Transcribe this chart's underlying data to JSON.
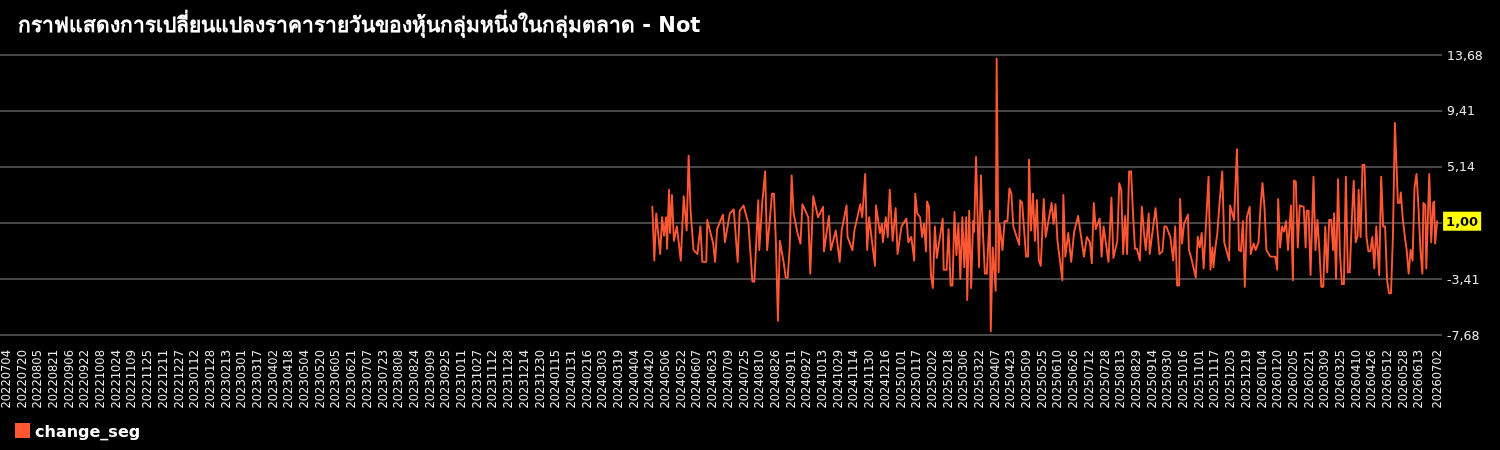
{
  "chart_data": {
    "type": "line",
    "title": "กราฟแสดงการเปลี่ยนแปลงราคารายวันของหุ้นกลุ่มหนึ่งในกลุ่มตลาด - Not",
    "x": [
      "2024-04-23",
      "2024-04-25",
      "2024-04-27",
      "2024-05-01",
      "2024-05-03",
      "2024-05-05",
      "2024-05-07",
      "2024-05-08",
      "2024-05-10",
      "2024-05-11",
      "2024-05-13",
      "2024-05-15",
      "2024-05-18",
      "2024-05-22",
      "2024-05-25",
      "2024-05-28",
      "2024-05-30",
      "2024-06-01",
      "2024-06-04",
      "2024-06-08",
      "2024-06-11",
      "2024-06-13",
      "2024-06-17",
      "2024-06-18",
      "2024-06-24",
      "2024-06-26",
      "2024-06-28",
      "2024-07-04",
      "2024-07-06",
      "2024-07-11",
      "2024-07-15",
      "2024-07-19",
      "2024-07-21",
      "2024-07-25",
      "2024-07-30",
      "2024-08-03",
      "2024-08-05",
      "2024-08-09",
      "2024-08-10",
      "2024-08-13",
      "2024-08-16",
      "2024-08-18",
      "2024-08-21",
      "2024-08-23",
      "2024-08-25",
      "2024-08-27",
      "2024-08-29",
      "2024-08-31",
      "2024-09-04",
      "2024-09-06",
      "2024-09-08",
      "2024-09-10",
      "2024-09-12",
      "2024-09-14",
      "2024-09-18",
      "2024-09-21",
      "2024-09-23",
      "2024-09-29",
      "2024-10-01",
      "2024-10-04",
      "2024-10-09",
      "2024-10-14",
      "2024-10-15",
      "2024-10-20",
      "2024-10-22",
      "2024-10-27",
      "2024-10-31",
      "2024-11-02",
      "2024-11-07",
      "2024-11-08",
      "2024-11-13",
      "2024-11-15",
      "2024-11-21",
      "2024-11-23",
      "2024-11-26",
      "2024-11-28",
      "2024-11-30",
      "2024-12-03",
      "2024-12-06",
      "2024-12-07",
      "2024-12-11",
      "2024-12-13",
      "2024-12-14",
      "2024-12-17",
      "2024-12-19",
      "2024-12-21",
      "2024-12-24",
      "2024-12-27",
      "2024-12-29",
      "2025-01-02",
      "2025-01-07",
      "2025-01-09",
      "2025-01-12",
      "2025-01-15",
      "2025-01-16",
      "2025-01-18",
      "2025-01-21",
      "2025-01-23",
      "2025-01-25",
      "2025-01-27",
      "2025-01-28",
      "2025-01-30",
      "2025-02-01",
      "2025-02-03",
      "2025-02-05",
      "2025-02-07",
      "2025-02-13",
      "2025-02-14",
      "2025-02-17",
      "2025-02-19",
      "2025-02-21",
      "2025-02-23",
      "2025-02-25",
      "2025-02-27",
      "2025-03-01",
      "2025-03-03",
      "2025-03-05",
      "2025-03-07",
      "2025-03-09",
      "2025-03-10",
      "2025-03-12",
      "2025-03-14",
      "2025-03-16",
      "2025-03-17",
      "2025-03-19",
      "2025-03-21",
      "2025-03-22",
      "2025-03-24",
      "2025-03-26",
      "2025-03-28",
      "2025-03-30",
      "2025-04-02",
      "2025-04-03",
      "2025-04-05",
      "2025-04-08",
      "2025-04-09",
      "2025-04-11",
      "2025-04-12",
      "2025-04-15",
      "2025-04-17",
      "2025-04-20",
      "2025-04-22",
      "2025-04-24",
      "2025-04-26",
      "2025-05-02",
      "2025-05-03",
      "2025-05-05",
      "2025-05-09",
      "2025-05-11",
      "2025-05-12",
      "2025-05-14",
      "2025-05-16",
      "2025-05-18",
      "2025-05-20",
      "2025-05-22",
      "2025-05-24",
      "2025-05-27",
      "2025-05-29",
      "2025-06-04",
      "2025-06-06",
      "2025-06-08",
      "2025-06-10",
      "2025-06-15",
      "2025-06-16",
      "2025-06-18",
      "2025-06-21",
      "2025-06-24",
      "2025-06-27",
      "2025-07-01",
      "2025-07-07",
      "2025-07-10",
      "2025-07-13",
      "2025-07-15",
      "2025-07-17",
      "2025-07-19",
      "2025-07-23",
      "2025-07-25",
      "2025-07-27",
      "2025-08-01",
      "2025-08-04",
      "2025-08-06",
      "2025-08-10",
      "2025-08-12",
      "2025-08-14",
      "2025-08-16",
      "2025-08-18",
      "2025-08-20",
      "2025-08-22",
      "2025-08-24",
      "2025-08-26",
      "2025-08-28",
      "2025-08-30",
      "2025-09-02",
      "2025-09-04",
      "2025-09-06",
      "2025-09-08",
      "2025-09-11",
      "2025-09-12",
      "2025-09-18",
      "2025-09-22",
      "2025-09-25",
      "2025-09-27",
      "2025-09-29",
      "2025-10-03",
      "2025-10-06",
      "2025-10-08",
      "2025-10-10",
      "2025-10-12",
      "2025-10-13",
      "2025-10-15",
      "2025-10-17",
      "2025-10-21",
      "2025-10-22",
      "2025-10-24",
      "2025-10-29",
      "2025-10-31",
      "2025-11-02",
      "2025-11-04",
      "2025-11-06",
      "2025-11-08",
      "2025-11-11",
      "2025-11-13",
      "2025-11-15",
      "2025-11-16",
      "2025-11-18",
      "2025-11-20",
      "2025-11-22",
      "2025-11-25",
      "2025-11-27",
      "2025-12-02",
      "2025-12-03",
      "2025-12-07",
      "2025-12-10",
      "2025-12-12",
      "2025-12-14",
      "2025-12-16",
      "2025-12-18",
      "2025-12-20",
      "2025-12-23",
      "2025-12-24",
      "2025-12-27",
      "2025-12-29",
      "2026-01-01",
      "2026-01-03",
      "2026-01-05",
      "2026-01-07",
      "2026-01-09",
      "2026-01-13",
      "2026-01-18",
      "2026-01-20",
      "2026-01-21",
      "2026-01-23",
      "2026-01-25",
      "2026-01-27",
      "2026-01-29",
      "2026-01-31",
      "2026-02-03",
      "2026-02-05",
      "2026-02-06",
      "2026-02-08",
      "2026-02-10",
      "2026-02-12",
      "2026-02-16",
      "2026-02-18",
      "2026-02-19",
      "2026-02-21",
      "2026-02-23",
      "2026-02-26",
      "2026-02-28",
      "2026-03-02",
      "2026-03-04",
      "2026-03-06",
      "2026-03-08",
      "2026-03-10",
      "2026-03-12",
      "2026-03-14",
      "2026-03-16",
      "2026-03-18",
      "2026-03-19",
      "2026-03-21",
      "2026-03-23",
      "2026-03-25",
      "2026-03-27",
      "2026-03-29",
      "2026-03-31",
      "2026-04-02",
      "2026-04-04",
      "2026-04-06",
      "2026-04-08",
      "2026-04-10",
      "2026-04-12",
      "2026-04-13",
      "2026-04-15",
      "2026-04-17",
      "2026-04-19",
      "2026-04-21",
      "2026-04-23",
      "2026-04-25",
      "2026-04-27",
      "2026-04-29",
      "2026-05-01",
      "2026-05-04",
      "2026-05-06",
      "2026-05-08",
      "2026-05-10",
      "2026-05-12",
      "2026-05-14",
      "2026-05-16",
      "2026-05-18",
      "2026-05-20",
      "2026-05-23",
      "2026-05-25",
      "2026-05-26",
      "2026-05-28",
      "2026-05-30",
      "2026-06-01",
      "2026-06-03",
      "2026-06-05",
      "2026-06-07",
      "2026-06-09",
      "2026-06-11",
      "2026-06-13",
      "2026-06-15",
      "2026-06-17",
      "2026-06-18",
      "2026-06-20",
      "2026-06-21",
      "2026-06-24",
      "2026-06-26",
      "2026-06-28",
      "2026-06-29",
      "2026-06-30",
      "2026-07-02"
    ],
    "series": [
      {
        "name": "change_seg",
        "color": "#ff5733",
        "values": [
          2.1,
          -2.0,
          1.6,
          -1.5,
          1.3,
          -0.1,
          1.3,
          -1.1,
          3.4,
          0.1,
          3.0,
          -0.5,
          0.6,
          -2.0,
          2.9,
          0.3,
          6.0,
          1.8,
          -1.2,
          -1.5,
          0.6,
          -2.1,
          -2.1,
          1.1,
          -0.7,
          -2.1,
          0.4,
          1.5,
          -0.6,
          1.6,
          1.9,
          -2.1,
          1.8,
          2.2,
          0.8,
          -3.6,
          -3.6,
          2.6,
          -1.2,
          2.4,
          4.8,
          -1.2,
          1.3,
          3.1,
          3.1,
          -0.7,
          -6.6,
          -0.5,
          -2.2,
          -3.3,
          -3.3,
          -1.0,
          4.5,
          1.6,
          0.1,
          -0.7,
          2.3,
          1.3,
          -3.0,
          2.9,
          1.3,
          2.1,
          -1.3,
          1.4,
          -1.2,
          0.3,
          -2.1,
          0.3,
          2.2,
          -0.2,
          -1.2,
          0.3,
          2.3,
          1.3,
          4.6,
          -1.2,
          1.3,
          -0.6,
          -2.4,
          2.2,
          0.1,
          0.8,
          -0.6,
          1.3,
          -0.2,
          3.4,
          -0.5,
          2.0,
          -1.5,
          0.6,
          1.2,
          -0.6,
          -0.2,
          -2.0,
          3.1,
          1.6,
          1.3,
          -0.2,
          0.8,
          -1.3,
          2.5,
          2.1,
          -3.1,
          -4.1,
          0.6,
          -1.8,
          1.2,
          -2.7,
          -2.7,
          0.4,
          -3.9,
          -3.9,
          1.7,
          -1.6,
          0.8,
          -3.4,
          1.3,
          -2.5,
          1.3,
          -5.0,
          1.8,
          -4.1,
          1.0,
          0.2,
          5.9,
          0.1,
          -2.5,
          4.5,
          0.2,
          -3.0,
          -3.0,
          1.8,
          -7.4,
          -1.0,
          -4.3,
          13.4,
          -2.9,
          0.8,
          -1.2,
          1.0,
          1.0,
          3.5,
          3.1,
          0.6,
          -0.8,
          2.6,
          2.4,
          -1.7,
          -1.7,
          5.7,
          0.3,
          3.1,
          -0.5,
          2.6,
          -2.0,
          -2.4,
          2.7,
          -0.2,
          2.4,
          0.8,
          2.3,
          -0.5,
          -3.5,
          3.0,
          -1.7,
          0.1,
          -2.1,
          0.2,
          1.4,
          -1.7,
          -0.2,
          -0.6,
          -2.2,
          2.4,
          0.4,
          1.2,
          -1.7,
          0.6,
          -2.1,
          2.8,
          -1.8,
          -0.5,
          3.9,
          3.4,
          -1.5,
          1.4,
          -1.5,
          4.8,
          4.8,
          1.6,
          -1.1,
          -1.1,
          -2.0,
          2.1,
          0.3,
          -1.2,
          1.6,
          -1.5,
          2.0,
          -1.5,
          -1.3,
          0.6,
          0.6,
          -0.2,
          -2.0,
          0.6,
          -3.9,
          -3.9,
          2.7,
          -0.7,
          0.8,
          1.5,
          -1.2,
          -1.7,
          -3.3,
          -0.2,
          -1.0,
          0.1,
          -2.6,
          0.2,
          4.4,
          -2.7,
          -1.0,
          -2.5,
          -1.0,
          0.1,
          2.2,
          4.8,
          -0.6,
          -2.0,
          2.2,
          1.1,
          6.5,
          -1.2,
          -1.3,
          1.0,
          -4.0,
          1.3,
          2.1,
          -1.5,
          -0.7,
          -1.2,
          -0.6,
          2.1,
          3.9,
          2.1,
          -1.2,
          -1.7,
          -1.7,
          -2.7,
          2.7,
          -1.0,
          0.6,
          0.2,
          1.0,
          -1.2,
          2.2,
          -3.5,
          4.1,
          4.0,
          -1.0,
          2.2,
          2.1,
          -1.0,
          1.8,
          1.8,
          -3.1,
          4.4,
          -1.2,
          1.1,
          -1.2,
          -4.0,
          -4.0,
          0.6,
          -2.9,
          1.1,
          1.1,
          -1.2,
          1.6,
          -3.4,
          4.2,
          -1.5,
          -3.8,
          -3.8,
          4.4,
          -2.9,
          -2.9,
          1.0,
          4.1,
          -0.6,
          -0.1,
          3.4,
          -0.2,
          5.3,
          5.3,
          -0.2,
          -1.3,
          -1.3,
          -0.2,
          -2.6,
          0.6,
          -3.1,
          4.4,
          0.6,
          0.6,
          -3.5,
          -4.5,
          -4.5,
          -0.1,
          8.5,
          2.4,
          2.4,
          3.2,
          1.2,
          -0.1,
          -1.2,
          -3.0,
          -1.2,
          -2.0,
          3.6,
          4.6,
          2.1,
          -1.2,
          -3.0,
          2.4,
          2.2,
          -2.6,
          4.6,
          -0.6,
          2.4,
          2.5,
          -0.7,
          1.0
        ]
      }
    ],
    "xlim": [
      "2022-06-28",
      "2026-07-07"
    ],
    "xticks": [
      {
        "value": "2022-07-04",
        "label": "20220704"
      },
      {
        "value": "2022-07-20",
        "label": "20220720"
      },
      {
        "value": "2022-08-05",
        "label": "20220805"
      },
      {
        "value": "2022-08-21",
        "label": "20220821"
      },
      {
        "value": "2022-09-06",
        "label": "20220906"
      },
      {
        "value": "2022-09-22",
        "label": "20220922"
      },
      {
        "value": "2022-10-08",
        "label": "20221008"
      },
      {
        "value": "2022-10-24",
        "label": "20221024"
      },
      {
        "value": "2022-11-09",
        "label": "20221109"
      },
      {
        "value": "2022-11-25",
        "label": "20221125"
      },
      {
        "value": "2022-12-11",
        "label": "20221211"
      },
      {
        "value": "2022-12-27",
        "label": "20221227"
      },
      {
        "value": "2023-01-12",
        "label": "20230112"
      },
      {
        "value": "2023-01-28",
        "label": "20230128"
      },
      {
        "value": "2023-02-13",
        "label": "20230213"
      },
      {
        "value": "2023-03-01",
        "label": "20230301"
      },
      {
        "value": "2023-03-17",
        "label": "20230317"
      },
      {
        "value": "2023-04-02",
        "label": "20230402"
      },
      {
        "value": "2023-04-18",
        "label": "20230418"
      },
      {
        "value": "2023-05-04",
        "label": "20230504"
      },
      {
        "value": "2023-05-20",
        "label": "20230520"
      },
      {
        "value": "2023-06-05",
        "label": "20230605"
      },
      {
        "value": "2023-06-21",
        "label": "20230621"
      },
      {
        "value": "2023-07-07",
        "label": "20230707"
      },
      {
        "value": "2023-07-23",
        "label": "20230723"
      },
      {
        "value": "2023-08-08",
        "label": "20230808"
      },
      {
        "value": "2023-08-24",
        "label": "20230824"
      },
      {
        "value": "2023-09-09",
        "label": "20230909"
      },
      {
        "value": "2023-09-25",
        "label": "20230925"
      },
      {
        "value": "2023-10-11",
        "label": "20231011"
      },
      {
        "value": "2023-10-27",
        "label": "20231027"
      },
      {
        "value": "2023-11-12",
        "label": "20231112"
      },
      {
        "value": "2023-11-28",
        "label": "20231128"
      },
      {
        "value": "2023-12-14",
        "label": "20231214"
      },
      {
        "value": "2023-12-30",
        "label": "20231230"
      },
      {
        "value": "2024-01-15",
        "label": "20240115"
      },
      {
        "value": "2024-01-31",
        "label": "20240131"
      },
      {
        "value": "2024-02-16",
        "label": "20240216"
      },
      {
        "value": "2024-03-03",
        "label": "20240303"
      },
      {
        "value": "2024-03-19",
        "label": "20240319"
      },
      {
        "value": "2024-04-04",
        "label": "20240404"
      },
      {
        "value": "2024-04-20",
        "label": "20240420"
      },
      {
        "value": "2024-05-06",
        "label": "20240506"
      },
      {
        "value": "2024-05-22",
        "label": "20240522"
      },
      {
        "value": "2024-06-07",
        "label": "20240607"
      },
      {
        "value": "2024-06-23",
        "label": "20240623"
      },
      {
        "value": "2024-07-09",
        "label": "20240709"
      },
      {
        "value": "2024-07-25",
        "label": "20240725"
      },
      {
        "value": "2024-08-10",
        "label": "20240810"
      },
      {
        "value": "2024-08-26",
        "label": "20240826"
      },
      {
        "value": "2024-09-11",
        "label": "20240911"
      },
      {
        "value": "2024-09-27",
        "label": "20240927"
      },
      {
        "value": "2024-10-13",
        "label": "20241013"
      },
      {
        "value": "2024-10-29",
        "label": "20241029"
      },
      {
        "value": "2024-11-14",
        "label": "20241114"
      },
      {
        "value": "2024-11-30",
        "label": "20241130"
      },
      {
        "value": "2024-12-16",
        "label": "20241216"
      },
      {
        "value": "2025-01-01",
        "label": "20250101"
      },
      {
        "value": "2025-01-17",
        "label": "20250117"
      },
      {
        "value": "2025-02-02",
        "label": "20250202"
      },
      {
        "value": "2025-02-18",
        "label": "20250218"
      },
      {
        "value": "2025-03-06",
        "label": "20250306"
      },
      {
        "value": "2025-03-22",
        "label": "20250322"
      },
      {
        "value": "2025-04-07",
        "label": "20250407"
      },
      {
        "value": "2025-04-23",
        "label": "20250423"
      },
      {
        "value": "2025-05-09",
        "label": "20250509"
      },
      {
        "value": "2025-05-25",
        "label": "20250525"
      },
      {
        "value": "2025-06-10",
        "label": "20250610"
      },
      {
        "value": "2025-06-26",
        "label": "20250626"
      },
      {
        "value": "2025-07-12",
        "label": "20250712"
      },
      {
        "value": "2025-07-28",
        "label": "20250728"
      },
      {
        "value": "2025-08-13",
        "label": "20250813"
      },
      {
        "value": "2025-08-29",
        "label": "20250829"
      },
      {
        "value": "2025-09-14",
        "label": "20250914"
      },
      {
        "value": "2025-09-30",
        "label": "20250930"
      },
      {
        "value": "2025-10-16",
        "label": "20251016"
      },
      {
        "value": "2025-11-01",
        "label": "20251101"
      },
      {
        "value": "2025-11-17",
        "label": "20251117"
      },
      {
        "value": "2025-12-03",
        "label": "20251203"
      },
      {
        "value": "2025-12-19",
        "label": "20251219"
      },
      {
        "value": "2026-01-04",
        "label": "20260104"
      },
      {
        "value": "2026-01-20",
        "label": "20260120"
      },
      {
        "value": "2026-02-05",
        "label": "20260205"
      },
      {
        "value": "2026-02-21",
        "label": "20260221"
      },
      {
        "value": "2026-03-09",
        "label": "20260309"
      },
      {
        "value": "2026-03-25",
        "label": "20260325"
      },
      {
        "value": "2026-04-10",
        "label": "20260410"
      },
      {
        "value": "2026-04-26",
        "label": "20260426"
      },
      {
        "value": "2026-05-12",
        "label": "20260512"
      },
      {
        "value": "2026-05-28",
        "label": "20260528"
      },
      {
        "value": "2026-06-13",
        "label": "20260613"
      },
      {
        "value": "2026-07-02",
        "label": "20260702"
      }
    ],
    "ylim": [
      -7.68,
      13.68
    ],
    "yticks": [
      {
        "value": -7.68,
        "label": "-7,68"
      },
      {
        "value": -3.41,
        "label": "-3,41"
      },
      {
        "value": 0.87,
        "label": null
      },
      {
        "value": 5.14,
        "label": "5,14"
      },
      {
        "value": 9.41,
        "label": "9,41"
      },
      {
        "value": 13.68,
        "label": "13,68"
      }
    ],
    "grid": "y",
    "legend": "bottom left",
    "annotations": [
      {
        "text": "1,00",
        "x": "2026-07-02",
        "y": 1.0
      }
    ]
  }
}
